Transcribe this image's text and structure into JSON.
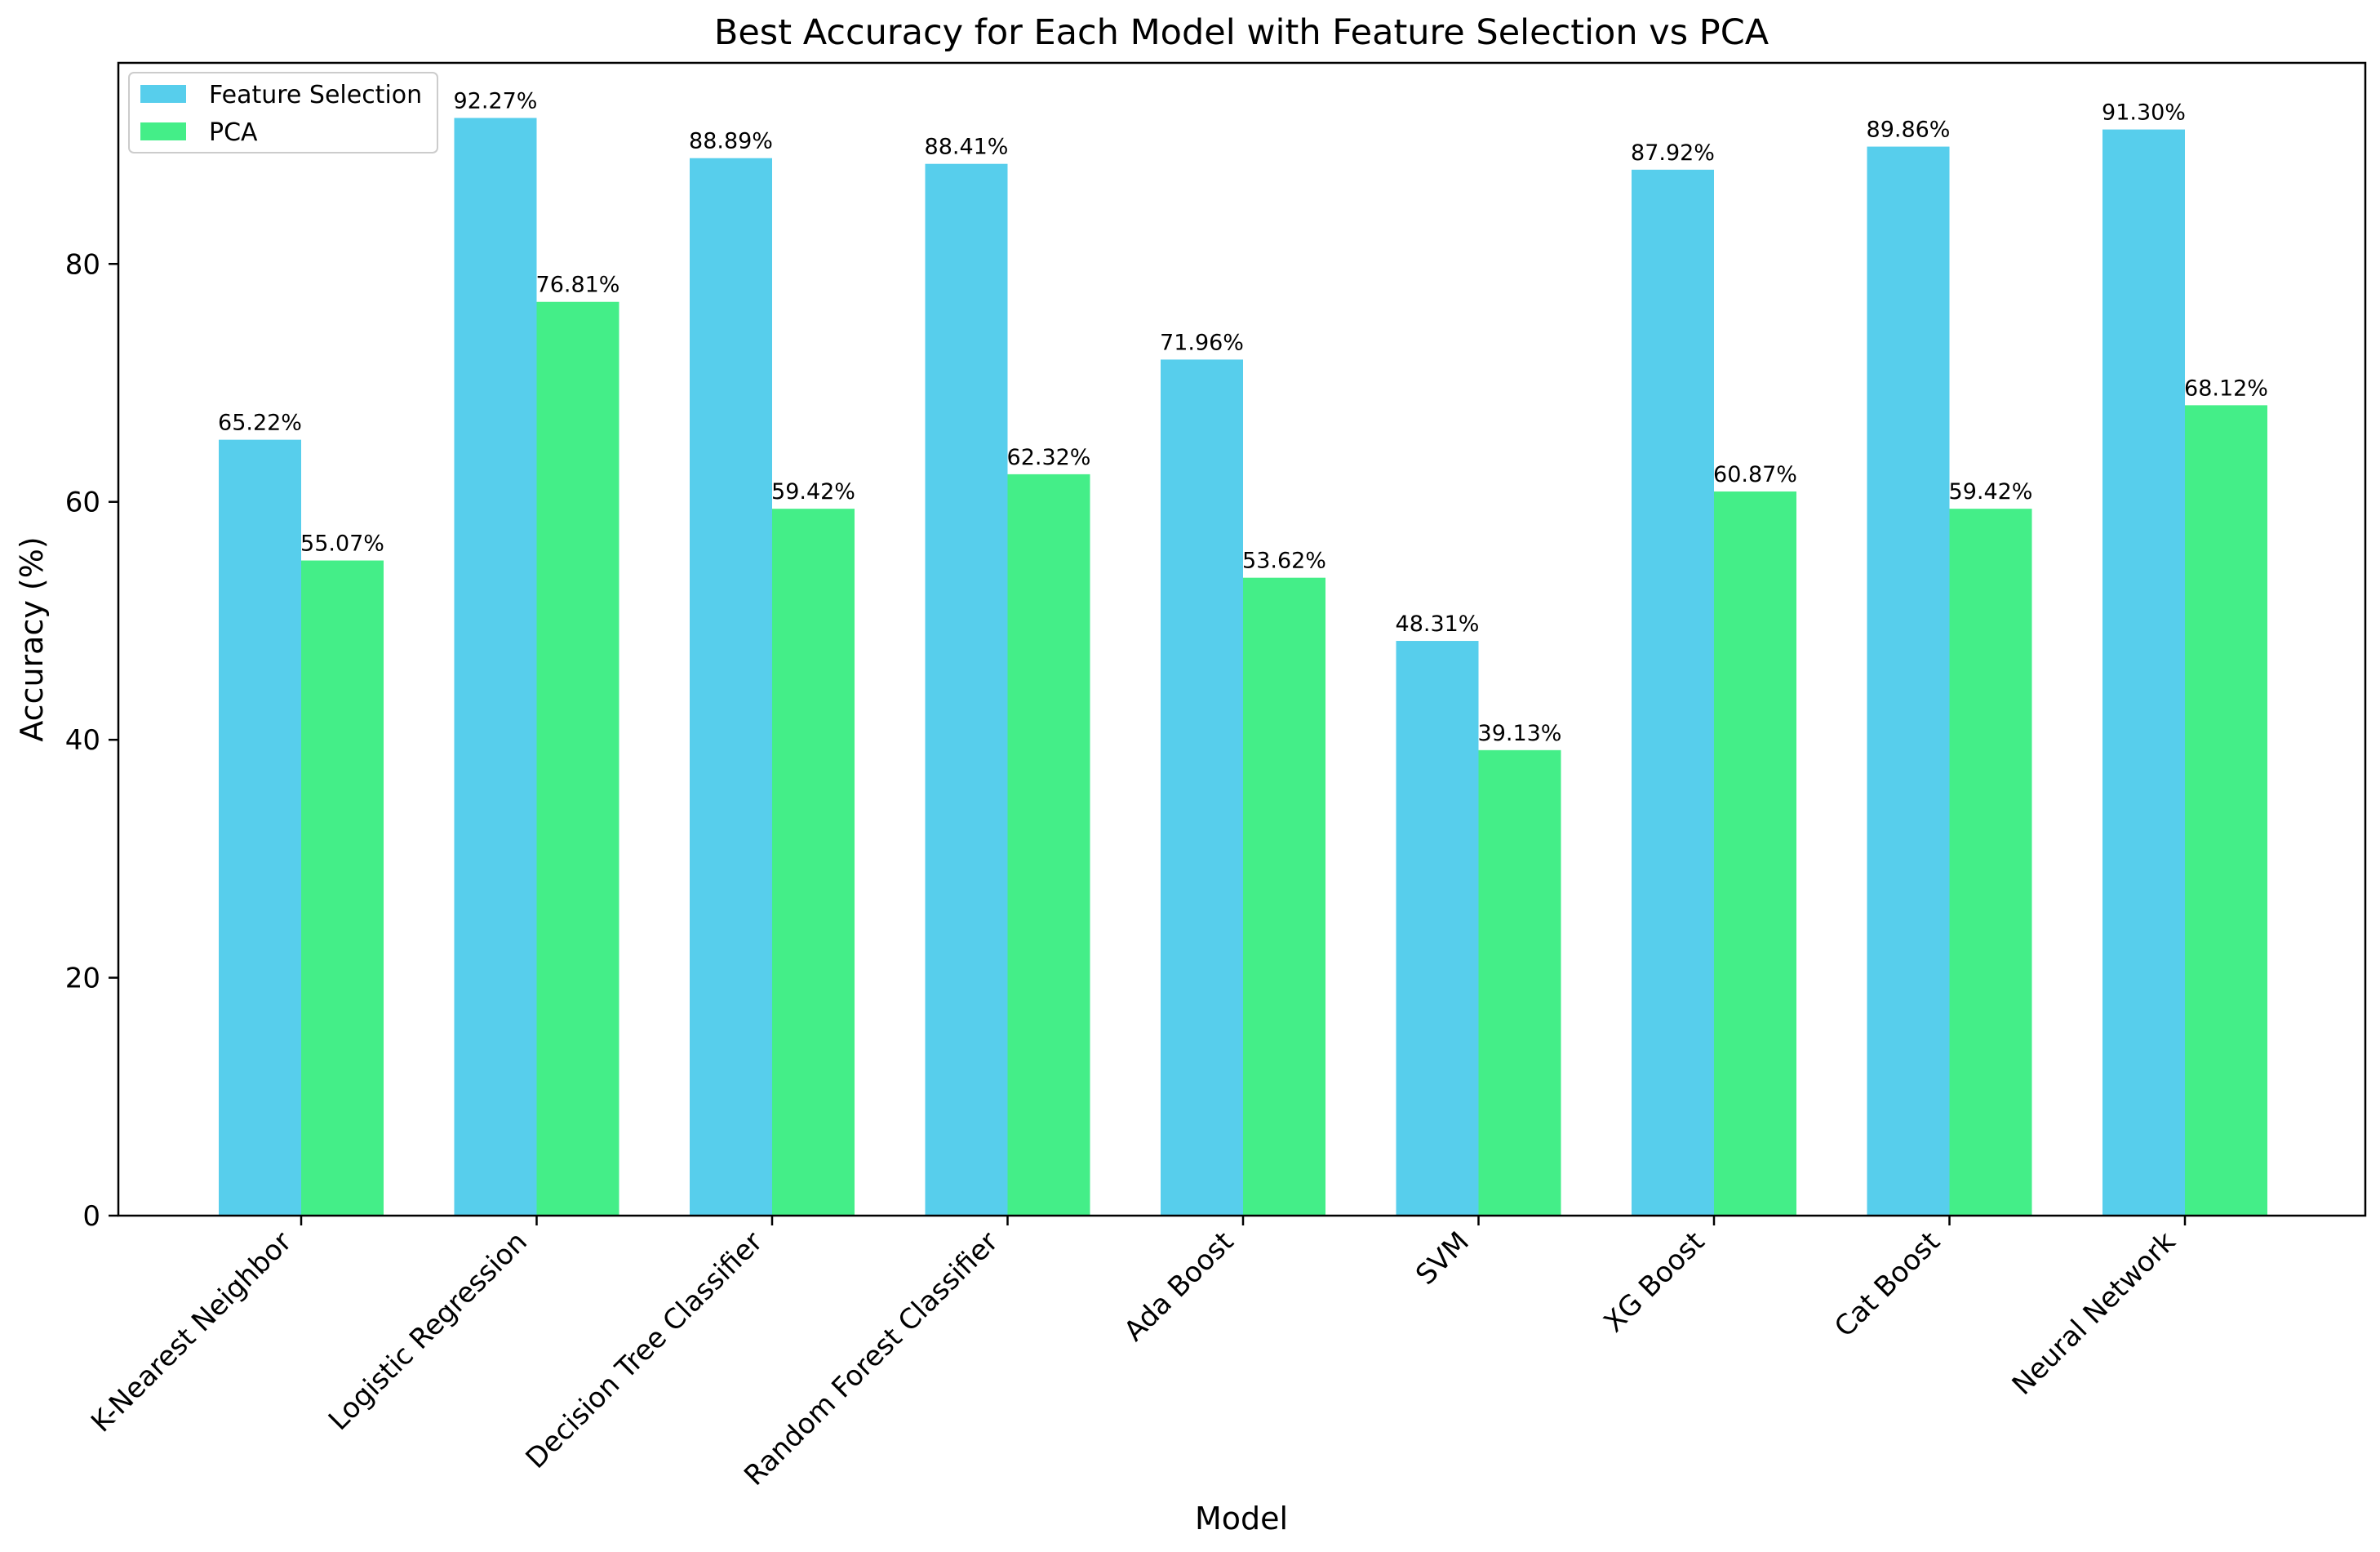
{
  "chart_data": {
    "type": "bar",
    "title": "Best Accuracy for Each Model with Feature Selection vs PCA",
    "xlabel": "Model",
    "ylabel": "Accuracy (%)",
    "ylim": [
      0,
      96.9
    ],
    "yticks": [
      0,
      20,
      40,
      60,
      80
    ],
    "grid": false,
    "legend_position": "top-left",
    "categories": [
      "K-Nearest Neighbor",
      "Logistic Regression",
      "Decision Tree Classifier",
      "Random Forest Classifier",
      "Ada Boost",
      "SVM",
      "XG Boost",
      "Cat Boost",
      "Neural Network"
    ],
    "series": [
      {
        "name": "Feature Selection",
        "color": "#57CEEC",
        "values": [
          65.22,
          92.27,
          88.89,
          88.41,
          71.96,
          48.31,
          87.92,
          89.86,
          91.3
        ],
        "labels": [
          "65.22%",
          "92.27%",
          "88.89%",
          "88.41%",
          "71.96%",
          "48.31%",
          "87.92%",
          "89.86%",
          "91.30%"
        ]
      },
      {
        "name": "PCA",
        "color": "#44EE88",
        "values": [
          55.07,
          76.81,
          59.42,
          62.32,
          53.62,
          39.13,
          60.87,
          59.42,
          68.12
        ],
        "labels": [
          "55.07%",
          "76.81%",
          "59.42%",
          "62.32%",
          "53.62%",
          "39.13%",
          "60.87%",
          "59.42%",
          "68.12%"
        ]
      }
    ]
  }
}
